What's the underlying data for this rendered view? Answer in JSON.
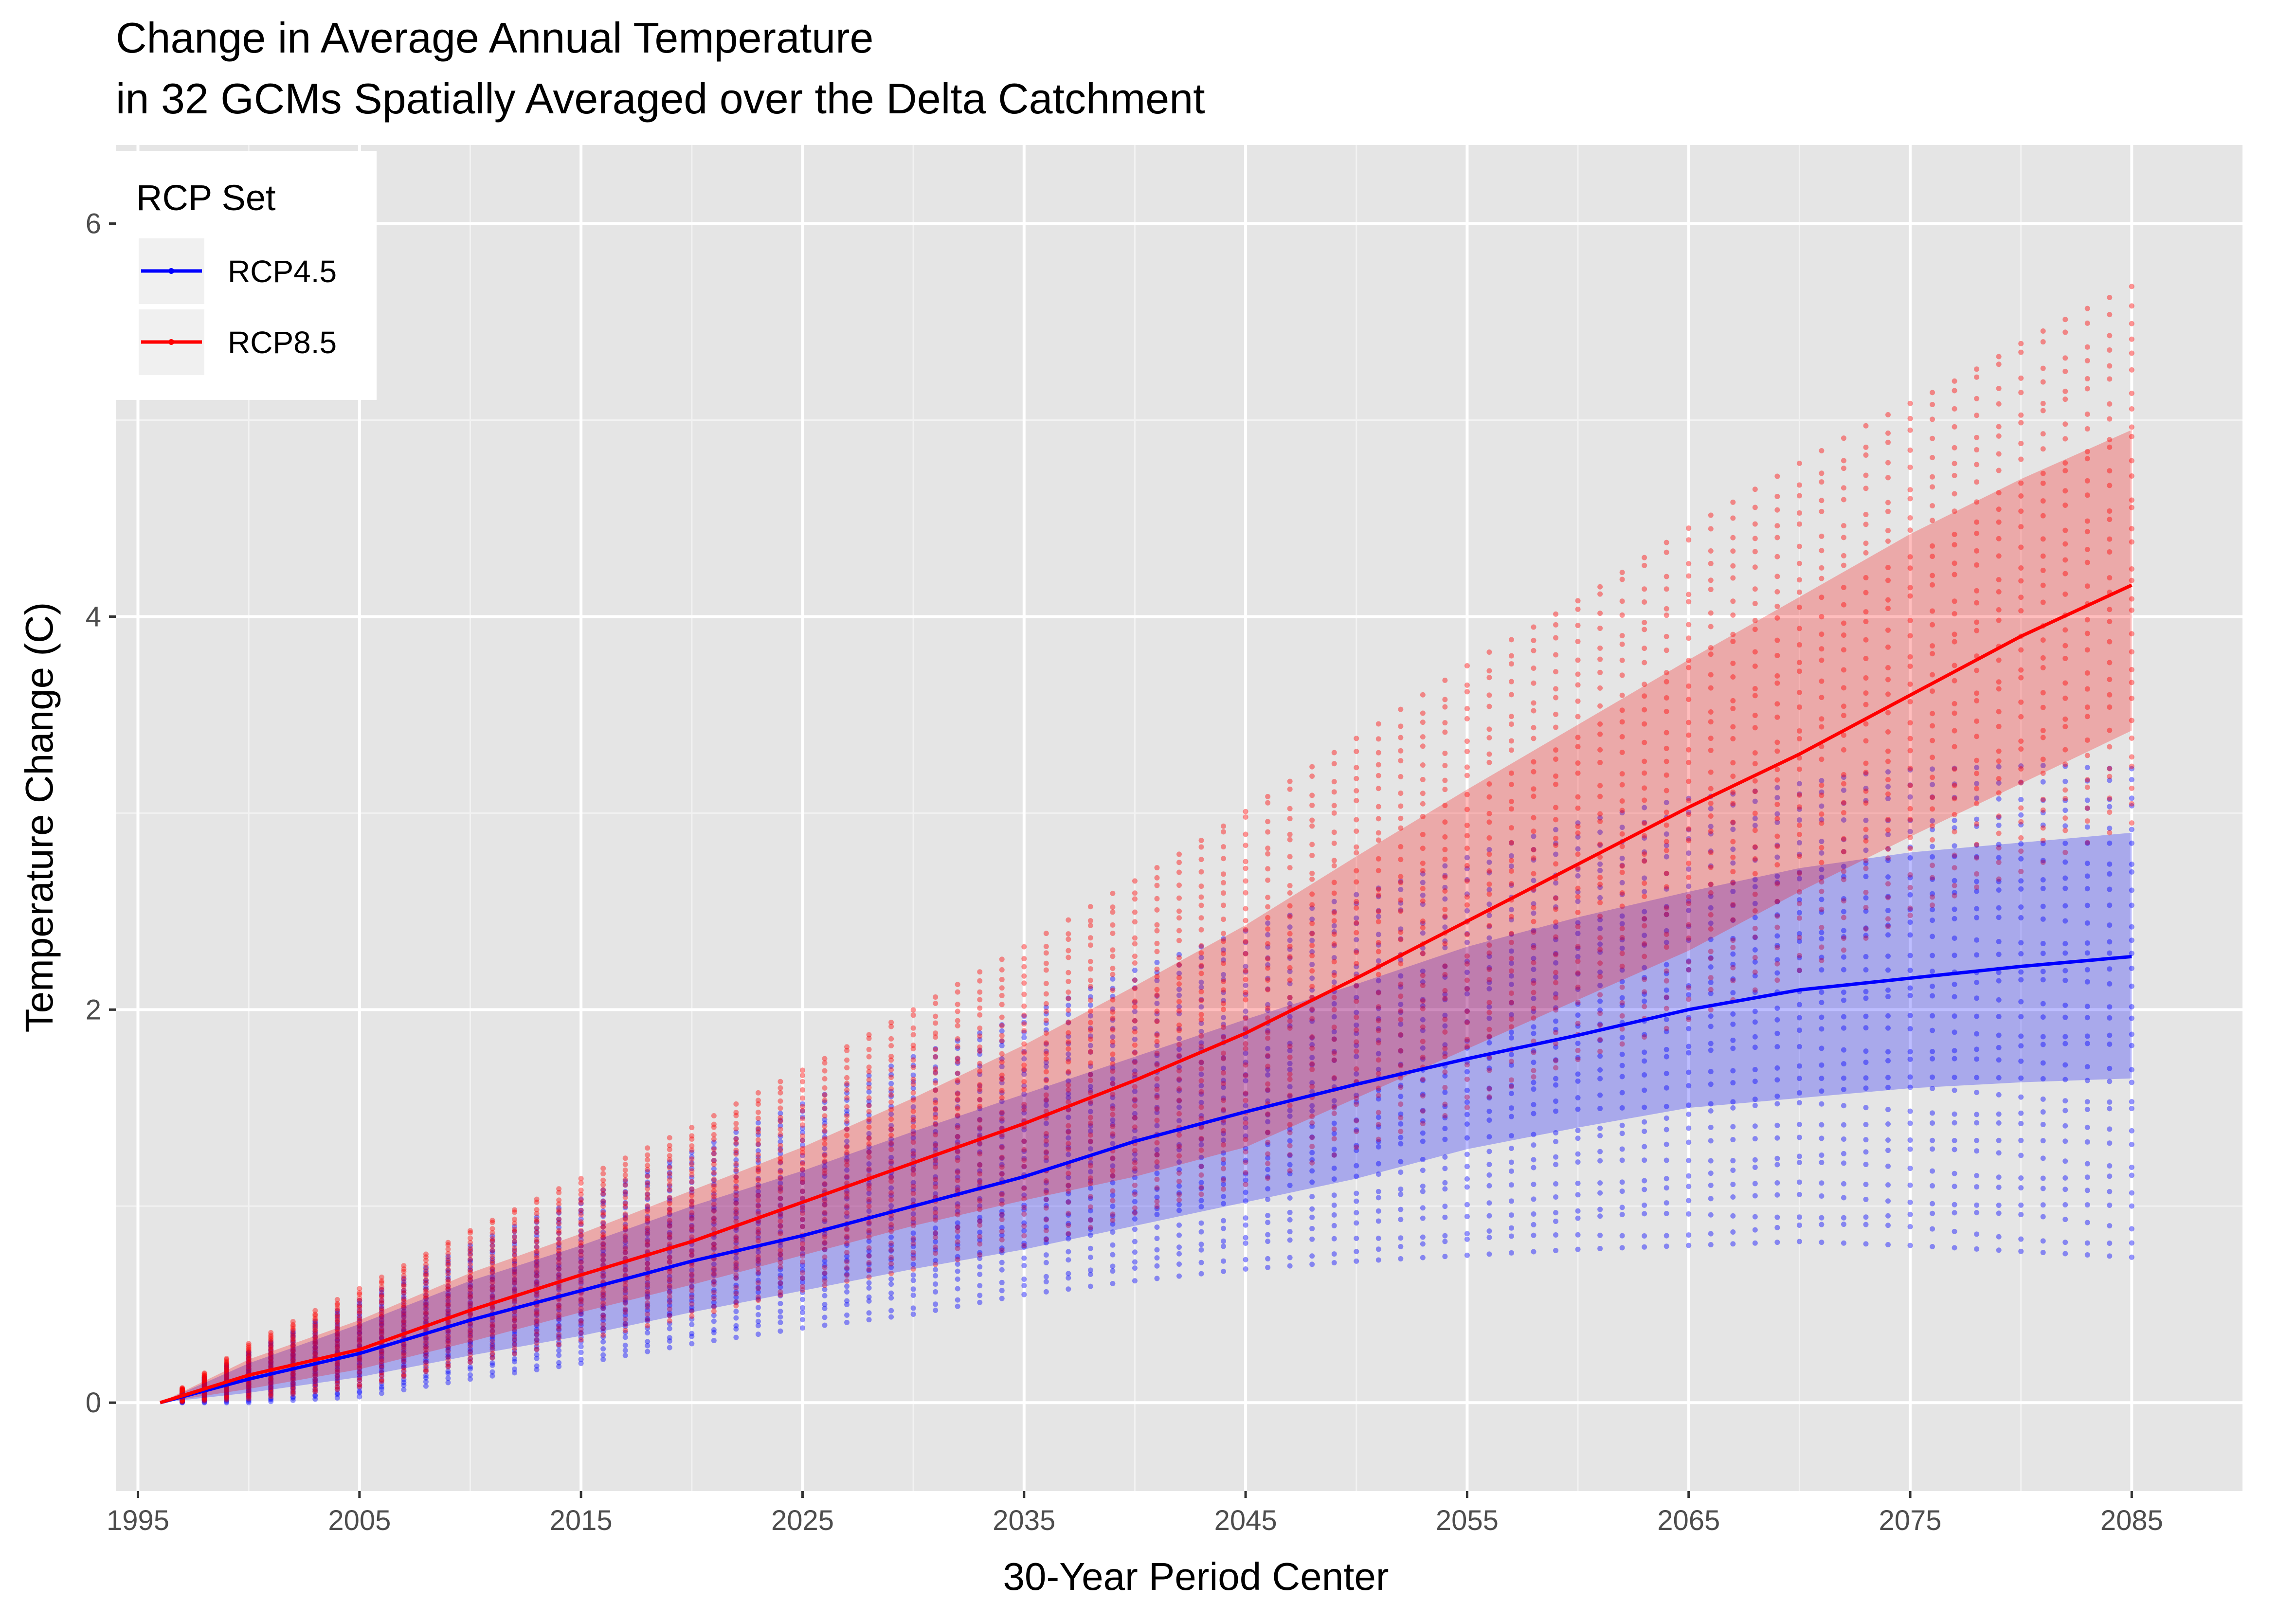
{
  "colors": {
    "panel": "#e5e5e5",
    "grid_major": "#ffffff",
    "grid_minor": "#f2f2f2",
    "rcp45": "#0000ff",
    "rcp85": "#ff0000"
  },
  "chart_data": {
    "type": "line",
    "title": "Change in Average Annual Temperature",
    "subtitle": "in 32 GCMs Spatially Averaged over the Delta Catchment",
    "xlabel": "30-Year Period Center",
    "ylabel": "Temperature Change (C)",
    "xlim": [
      1994,
      2090
    ],
    "ylim": [
      -0.45,
      6.4
    ],
    "x_ticks": [
      1995,
      2005,
      2015,
      2025,
      2035,
      2045,
      2055,
      2065,
      2075,
      2085
    ],
    "x_tick_labels": [
      "1995",
      "2005",
      "2015",
      "2025",
      "2035",
      "2045",
      "2055",
      "2065",
      "2075",
      "2085"
    ],
    "y_ticks": [
      0,
      2,
      4,
      6
    ],
    "y_tick_labels": [
      "0",
      "2",
      "4",
      "6"
    ],
    "grid": true,
    "legend": {
      "title": "RCP Set",
      "position": "top-left",
      "entries": [
        "RCP4.5",
        "RCP8.5"
      ]
    },
    "gcm_count": 32,
    "series": [
      {
        "name": "RCP4.5",
        "color": "#0000ff",
        "x": [
          1996,
          2000,
          2005,
          2010,
          2015,
          2020,
          2025,
          2030,
          2035,
          2040,
          2045,
          2050,
          2055,
          2060,
          2065,
          2070,
          2075,
          2080,
          2085
        ],
        "mean": [
          0.0,
          0.12,
          0.25,
          0.42,
          0.57,
          0.72,
          0.85,
          1.0,
          1.15,
          1.33,
          1.48,
          1.62,
          1.75,
          1.87,
          2.0,
          2.1,
          2.16,
          2.22,
          2.27
        ],
        "lower": [
          0.0,
          0.05,
          0.13,
          0.24,
          0.34,
          0.46,
          0.57,
          0.68,
          0.78,
          0.9,
          1.02,
          1.14,
          1.29,
          1.4,
          1.5,
          1.55,
          1.6,
          1.63,
          1.65
        ],
        "upper": [
          0.0,
          0.2,
          0.4,
          0.62,
          0.8,
          1.0,
          1.18,
          1.38,
          1.57,
          1.76,
          1.95,
          2.13,
          2.32,
          2.47,
          2.6,
          2.72,
          2.8,
          2.85,
          2.9
        ],
        "min": [
          0.0,
          0.0,
          0.03,
          0.12,
          0.2,
          0.3,
          0.38,
          0.45,
          0.55,
          0.62,
          0.68,
          0.72,
          0.75,
          0.78,
          0.8,
          0.82,
          0.8,
          0.77,
          0.74
        ],
        "max": [
          0.0,
          0.26,
          0.52,
          0.8,
          1.04,
          1.28,
          1.52,
          1.76,
          1.98,
          2.2,
          2.4,
          2.6,
          2.78,
          2.95,
          3.08,
          3.17,
          3.22,
          3.24,
          3.25
        ]
      },
      {
        "name": "RCP8.5",
        "color": "#ff0000",
        "x": [
          1996,
          2000,
          2005,
          2010,
          2015,
          2020,
          2025,
          2030,
          2035,
          2040,
          2045,
          2050,
          2055,
          2060,
          2065,
          2070,
          2075,
          2080,
          2085
        ],
        "mean": [
          0.0,
          0.14,
          0.27,
          0.47,
          0.65,
          0.82,
          1.02,
          1.22,
          1.42,
          1.64,
          1.88,
          2.16,
          2.45,
          2.74,
          3.03,
          3.3,
          3.6,
          3.9,
          4.16
        ],
        "lower": [
          0.0,
          0.07,
          0.17,
          0.31,
          0.46,
          0.6,
          0.75,
          0.9,
          1.03,
          1.15,
          1.3,
          1.55,
          1.8,
          2.05,
          2.3,
          2.6,
          2.88,
          3.15,
          3.42
        ],
        "upper": [
          0.0,
          0.22,
          0.42,
          0.66,
          0.86,
          1.08,
          1.3,
          1.55,
          1.82,
          2.12,
          2.43,
          2.78,
          3.12,
          3.45,
          3.78,
          4.1,
          4.42,
          4.7,
          4.95
        ],
        "min": [
          0.0,
          0.02,
          0.08,
          0.2,
          0.32,
          0.44,
          0.56,
          0.68,
          0.8,
          0.95,
          1.1,
          1.3,
          1.5,
          1.72,
          1.95,
          2.2,
          2.45,
          2.7,
          2.95
        ],
        "max": [
          0.0,
          0.3,
          0.58,
          0.88,
          1.14,
          1.4,
          1.7,
          2.0,
          2.32,
          2.66,
          3.02,
          3.38,
          3.75,
          4.1,
          4.45,
          4.78,
          5.1,
          5.4,
          5.68
        ]
      }
    ]
  }
}
